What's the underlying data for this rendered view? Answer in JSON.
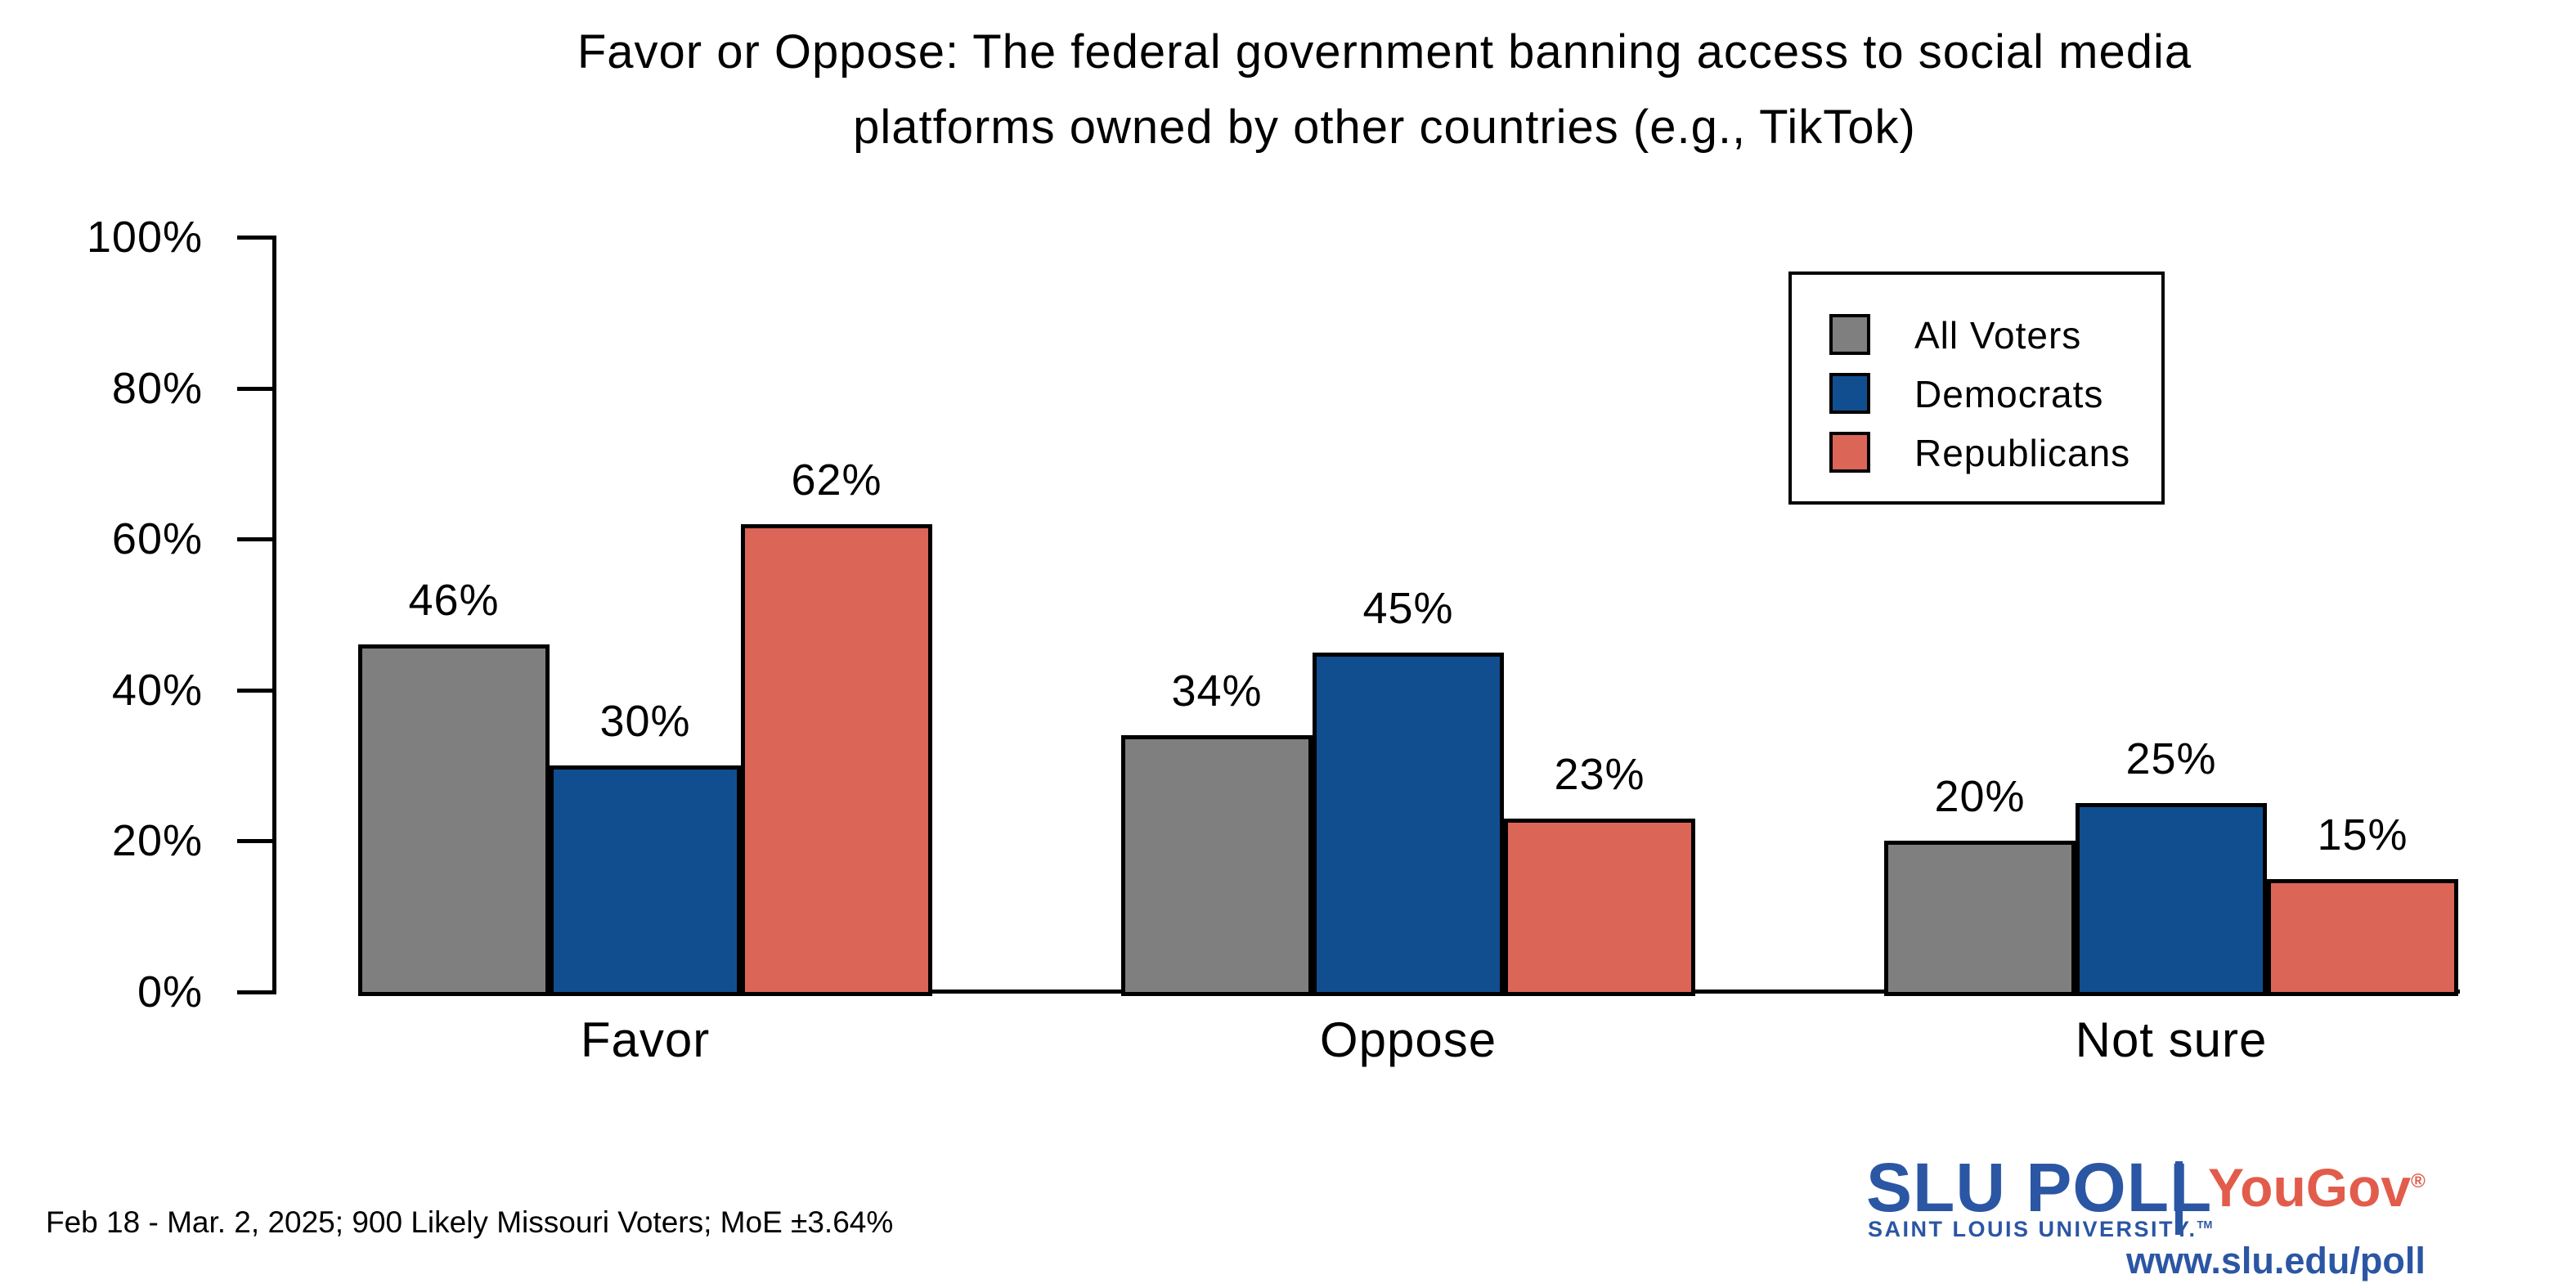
{
  "chart_data": {
    "type": "bar",
    "title": "Favor or Oppose: The federal government banning access to social media platforms owned by other countries (e.g., TikTok)",
    "title_line1": "Favor or Oppose: The federal government banning access to social media",
    "title_line2": "platforms owned by other countries (e.g., TikTok)",
    "categories": [
      "Favor",
      "Oppose",
      "Not sure"
    ],
    "series": [
      {
        "name": "All Voters",
        "color": "#7F7F7F",
        "values": [
          46,
          34,
          20
        ]
      },
      {
        "name": "Democrats",
        "color": "#114E8F",
        "values": [
          30,
          45,
          25
        ]
      },
      {
        "name": "Republicans",
        "color": "#DB6657",
        "values": [
          62,
          23,
          15
        ]
      }
    ],
    "value_suffix": "%",
    "ylabel": "",
    "xlabel": "",
    "ylim": [
      0,
      100
    ],
    "y_tick_step": 20,
    "y_tick_suffix": "%",
    "grid": false,
    "legend_position": "top-right",
    "bar_outline_color": "#000000"
  },
  "footnote": "Feb 18 - Mar. 2, 2025; 900 Likely Missouri Voters; MoE ±3.64%",
  "branding": {
    "slu_poll": "SLU POLL",
    "slu_subtitle": "SAINT LOUIS UNIVERSITY.",
    "slu_tm": "TM",
    "partner": "YouGov",
    "partner_reg": "®",
    "url": "www.slu.edu/poll",
    "slu_blue": "#2B56A4",
    "yougov_red": "#E25C4B"
  }
}
